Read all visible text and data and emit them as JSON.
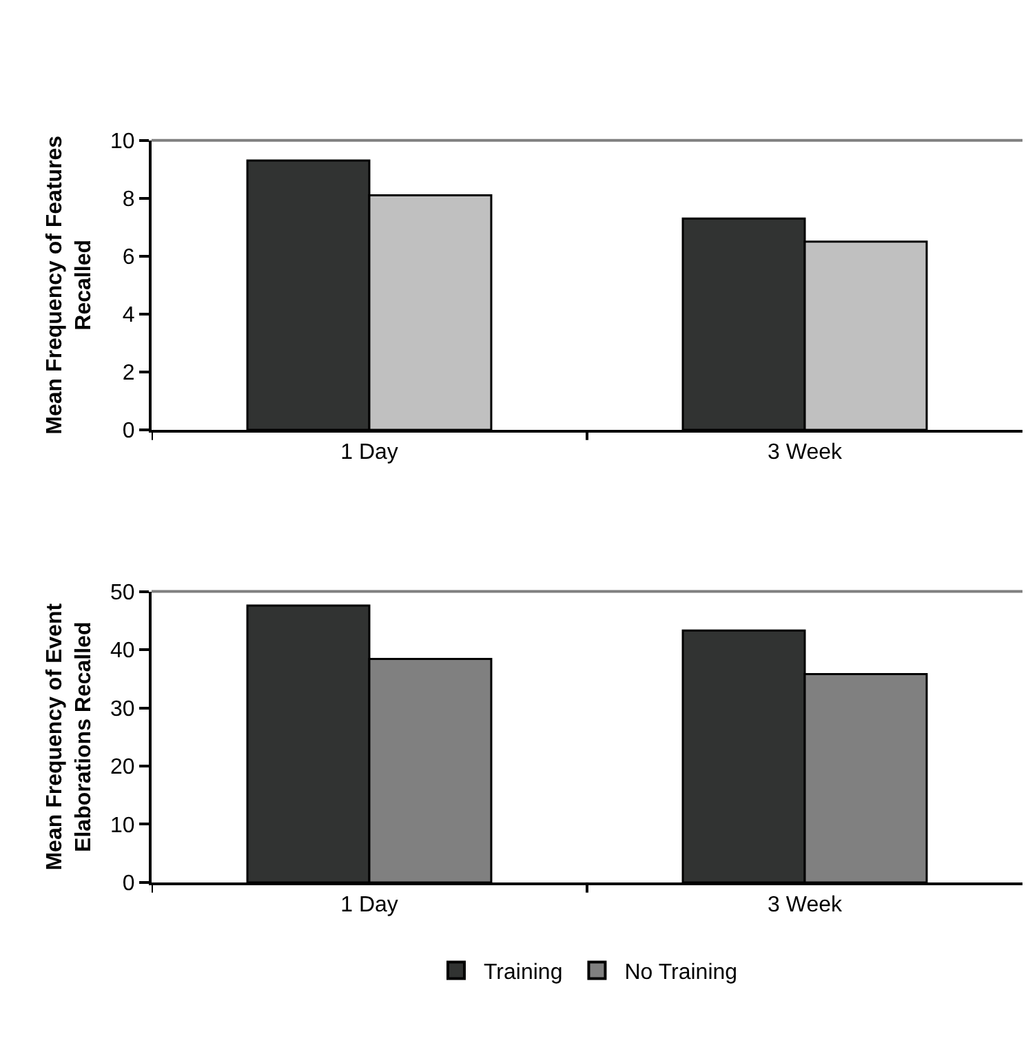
{
  "chart_data": [
    {
      "type": "bar",
      "ylabel": "Mean Frequency of Features\nRecalled",
      "categories": [
        "1 Day",
        "3 Week"
      ],
      "series": [
        {
          "color": "#313332",
          "values": [
            9.3,
            7.3
          ]
        },
        {
          "color": "#c0c0c0",
          "values": [
            8.1,
            6.5
          ]
        }
      ],
      "ylim": [
        0,
        10
      ],
      "yticks": [
        0,
        2,
        4,
        6,
        8,
        10
      ],
      "legend": false
    },
    {
      "type": "bar",
      "ylabel": "Mean Frequency of Event\nElaborations Recalled",
      "categories": [
        "1 Day",
        "3 Week"
      ],
      "series": [
        {
          "name": "Training",
          "color": "#313332",
          "values": [
            47.6,
            43.3
          ]
        },
        {
          "name": "No Training",
          "color": "#808080",
          "values": [
            38.4,
            35.8
          ]
        }
      ],
      "ylim": [
        0,
        50
      ],
      "yticks": [
        0,
        10,
        20,
        30,
        40,
        50
      ],
      "legend": "bottom"
    }
  ]
}
